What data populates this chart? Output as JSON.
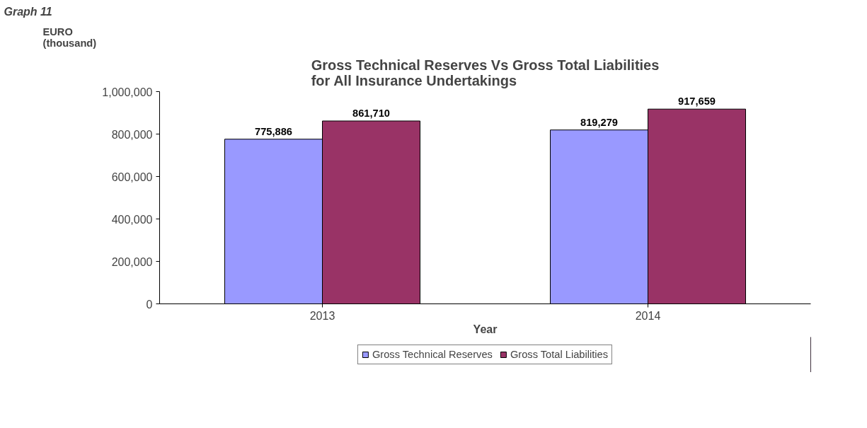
{
  "chart_data": {
    "type": "bar",
    "title": "Gross Technical Reserves Vs Gross Total Liabilities\nfor All Insurance Undertakings",
    "ylabel": "EURO\n(thousand)",
    "xlabel": "Year",
    "annotations": [
      "Graph 11"
    ],
    "categories": [
      "2013",
      "2014"
    ],
    "series": [
      {
        "name": "Gross Technical Reserves",
        "color": "#9999ff",
        "values": [
          775886,
          819279
        ],
        "value_labels": [
          "775,886",
          "819,279"
        ]
      },
      {
        "name": "Gross Total Liabilities",
        "color": "#993366",
        "values": [
          861710,
          917659
        ],
        "value_labels": [
          "861,710",
          "917,659"
        ]
      }
    ],
    "ylim": [
      0,
      1000000
    ],
    "yticks": [
      {
        "value": 0,
        "label": "0"
      },
      {
        "value": 200000,
        "label": "200,000"
      },
      {
        "value": 400000,
        "label": "400,000"
      },
      {
        "value": 600000,
        "label": "600,000"
      },
      {
        "value": 800000,
        "label": "800,000"
      },
      {
        "value": 1000000,
        "label": "1,000,000"
      }
    ],
    "grid": false,
    "legend": "bottom"
  }
}
